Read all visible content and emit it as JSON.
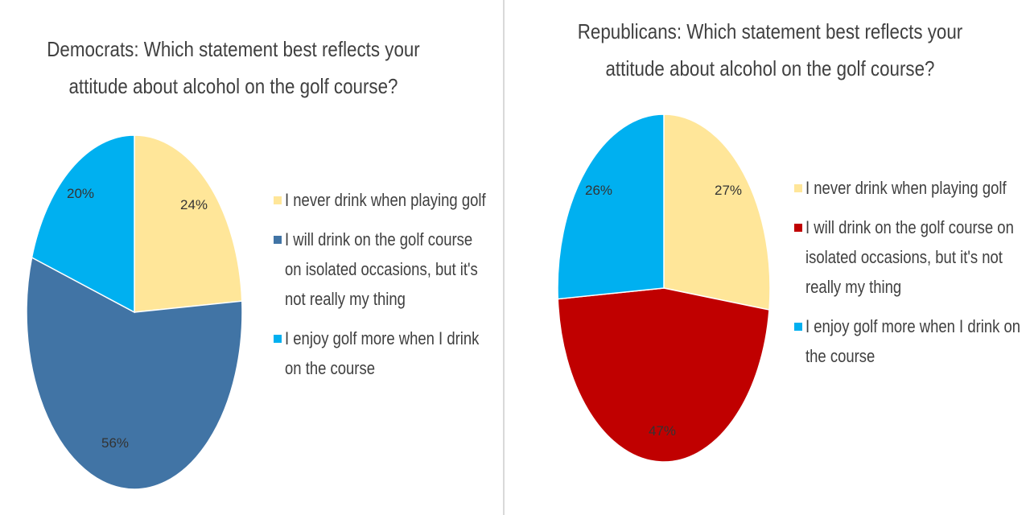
{
  "chart_data": [
    {
      "type": "pie",
      "title": "Democrats: Which statement best reflects your attitude about alcohol on the golf course?",
      "categories": [
        "I never drink when playing golf",
        "I will drink on the golf course on isolated occasions, but it's not really my thing",
        "I enjoy golf more when I drink on the course"
      ],
      "values": [
        24,
        56,
        20
      ],
      "labels": [
        "24%",
        "56%",
        "20%"
      ],
      "colors": [
        "#ffe699",
        "#4174a5",
        "#00b0f0"
      ],
      "label_colors": [
        "#333333",
        "#333333",
        "#333333"
      ],
      "start_angle_deg": 0,
      "direction": "clockwise",
      "legend_position": "right"
    },
    {
      "type": "pie",
      "title": "Republicans: Which statement best reflects your attitude about alcohol on the golf course?",
      "categories": [
        "I never drink when playing golf",
        "I will drink on the golf course on isolated occasions, but it's not really my thing",
        "I enjoy golf more when I drink on the course"
      ],
      "values": [
        27,
        47,
        26
      ],
      "labels": [
        "27%",
        "47%",
        "26%"
      ],
      "colors": [
        "#ffe699",
        "#c00000",
        "#00b0f0"
      ],
      "label_colors": [
        "#333333",
        "#7a1818",
        "#333333"
      ],
      "start_angle_deg": 0,
      "direction": "clockwise",
      "legend_position": "right"
    }
  ]
}
